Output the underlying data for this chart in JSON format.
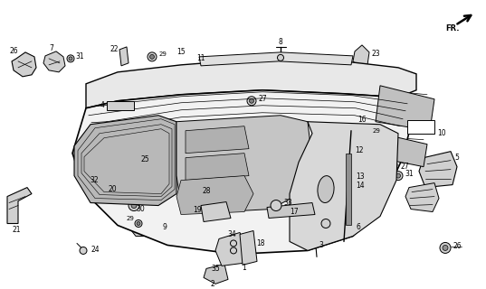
{
  "bg_color": "#ffffff",
  "line_color": "#000000",
  "panel_color": "#f2f2f2",
  "shadow_color": "#d0d0d0",
  "dark_color": "#a0a0a0",
  "mid_color": "#c8c8c8"
}
